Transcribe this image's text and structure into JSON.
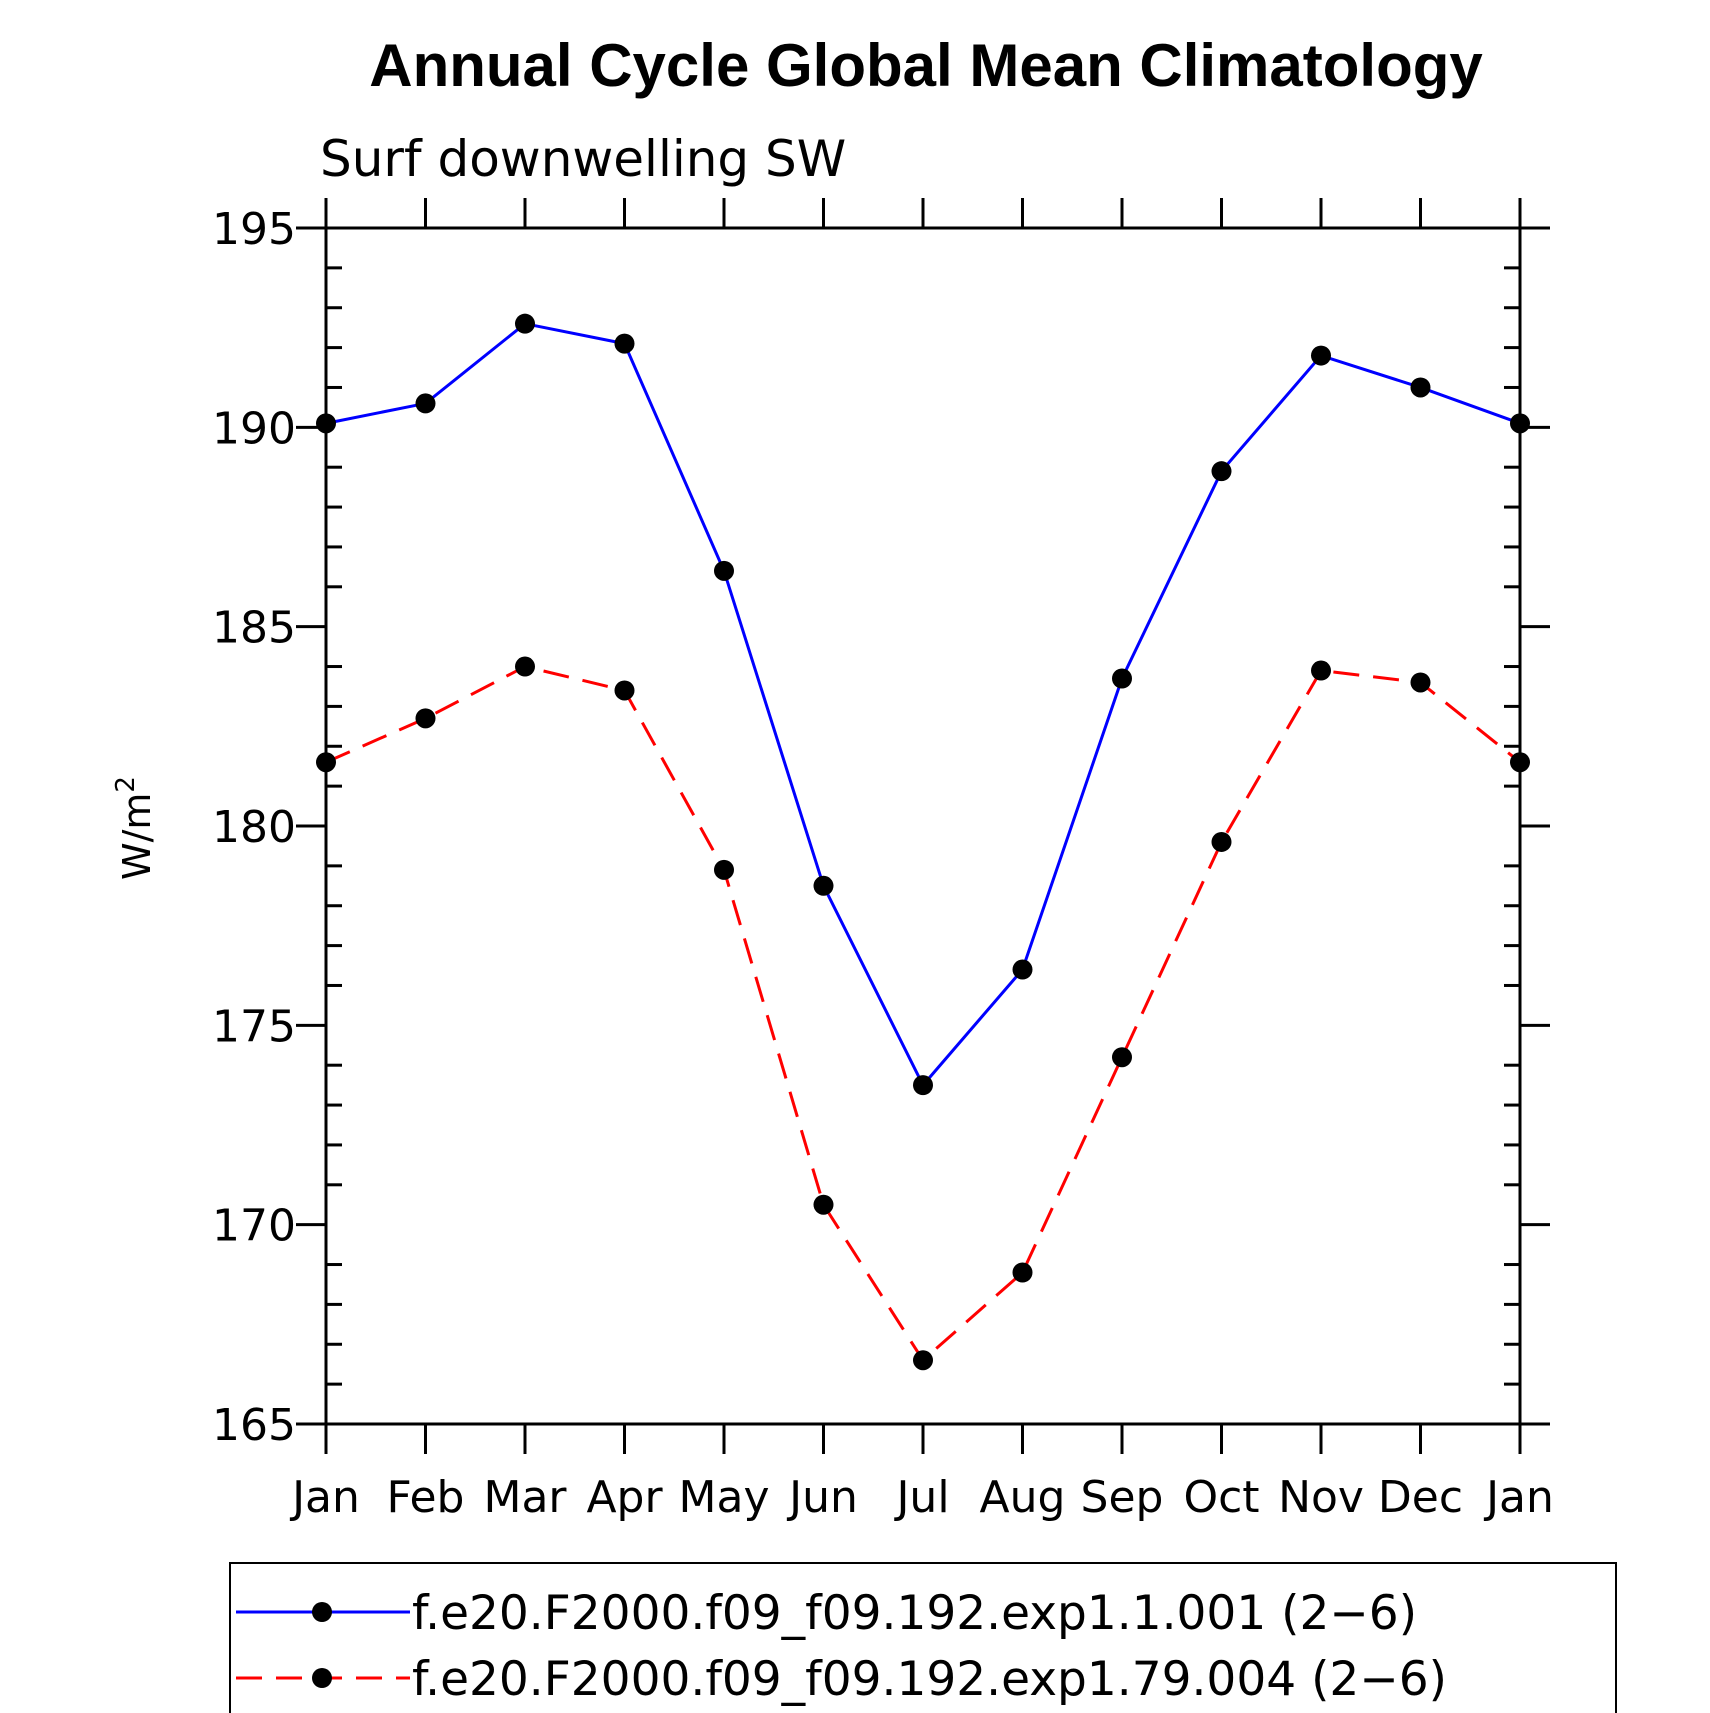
{
  "chart_data": {
    "type": "line",
    "title": "Annual Cycle Global Mean Climatology",
    "subtitle": "Surf downwelling SW",
    "ylabel": "W/m",
    "ylabel_superscript": "2",
    "categories": [
      "Jan",
      "Feb",
      "Mar",
      "Apr",
      "May",
      "Jun",
      "Jul",
      "Aug",
      "Sep",
      "Oct",
      "Nov",
      "Dec",
      "Jan"
    ],
    "ylim": [
      165,
      195
    ],
    "yticks": [
      165,
      170,
      175,
      180,
      185,
      190,
      195
    ],
    "grid": false,
    "legend_position": "bottom",
    "series": [
      {
        "name": "f.e20.F2000.f09_f09.192.exp1.1.001 (2−6)",
        "color": "#0000ff",
        "dash": "solid",
        "values": [
          190.1,
          190.6,
          192.6,
          192.1,
          186.4,
          178.5,
          173.5,
          176.4,
          183.7,
          188.9,
          191.8,
          191.0,
          190.1
        ]
      },
      {
        "name": "f.e20.F2000.f09_f09.192.exp1.79.004 (2−6)",
        "color": "#ff0000",
        "dash": "dashed",
        "values": [
          181.6,
          182.7,
          184.0,
          183.4,
          178.9,
          170.5,
          166.6,
          168.8,
          174.2,
          179.6,
          183.9,
          183.6,
          181.6
        ]
      }
    ]
  }
}
